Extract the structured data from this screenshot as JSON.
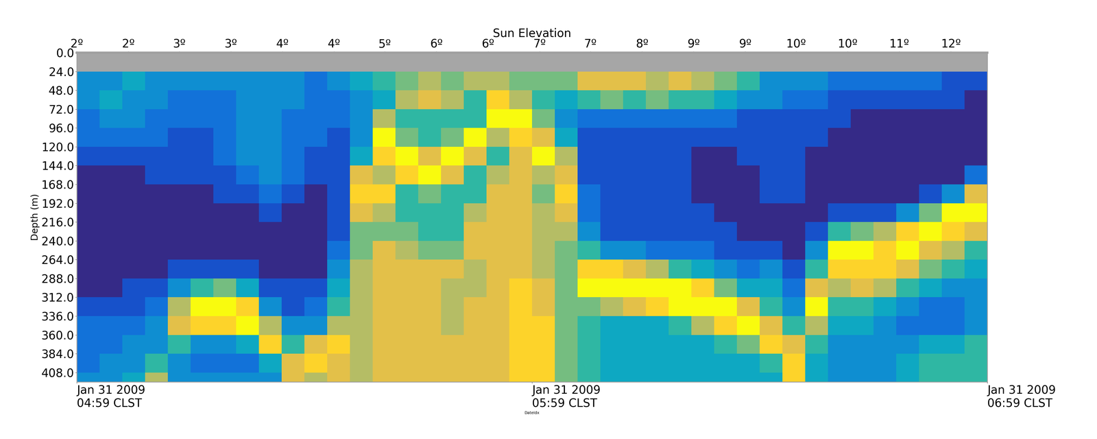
{
  "chart_data": {
    "type": "heatmap",
    "x2label": "Sun Elevation",
    "xlabel": "DateIdx",
    "ylabel": "Depth (m)",
    "xlim": [
      0,
      120
    ],
    "ylim": [
      420,
      0
    ],
    "xticks": [
      {
        "value": 0,
        "label": "Jan 31 2009\n04:59 CLST"
      },
      {
        "value": 60,
        "label": "Jan 31 2009\n05:59 CLST"
      },
      {
        "value": 120,
        "label": "Jan 31 2009\n06:59 CLST"
      }
    ],
    "x2ticks": [
      {
        "value": 0,
        "label": "2º"
      },
      {
        "value": 6.8,
        "label": "2º"
      },
      {
        "value": 13.5,
        "label": "3º"
      },
      {
        "value": 20.3,
        "label": "3º"
      },
      {
        "value": 27.1,
        "label": "4º"
      },
      {
        "value": 33.9,
        "label": "4º"
      },
      {
        "value": 40.6,
        "label": "5º"
      },
      {
        "value": 47.4,
        "label": "6º"
      },
      {
        "value": 54.2,
        "label": "6º"
      },
      {
        "value": 61.0,
        "label": "7º"
      },
      {
        "value": 67.7,
        "label": "7º"
      },
      {
        "value": 74.5,
        "label": "8º"
      },
      {
        "value": 81.3,
        "label": "9º"
      },
      {
        "value": 88.1,
        "label": "9º"
      },
      {
        "value": 94.8,
        "label": "10º"
      },
      {
        "value": 101.6,
        "label": "10º"
      },
      {
        "value": 108.4,
        "label": "11º"
      },
      {
        "value": 115.2,
        "label": "12º"
      }
    ],
    "yticks": [
      {
        "value": 0,
        "label": "0.0"
      },
      {
        "value": 24,
        "label": "24.0"
      },
      {
        "value": 48,
        "label": "48.0"
      },
      {
        "value": 72,
        "label": "72.0"
      },
      {
        "value": 96,
        "label": "96.0"
      },
      {
        "value": 120,
        "label": "120.0"
      },
      {
        "value": 144,
        "label": "144.0"
      },
      {
        "value": 168,
        "label": "168.0"
      },
      {
        "value": 192,
        "label": "192.0"
      },
      {
        "value": 216,
        "label": "216.0"
      },
      {
        "value": 240,
        "label": "240.0"
      },
      {
        "value": 264,
        "label": "264.0"
      },
      {
        "value": 288,
        "label": "288.0"
      },
      {
        "value": 312,
        "label": "312.0"
      },
      {
        "value": 336,
        "label": "336.0"
      },
      {
        "value": 360,
        "label": "360.0"
      },
      {
        "value": 384,
        "label": "384.0"
      },
      {
        "value": 408,
        "label": "408.0"
      }
    ],
    "color_range": [
      0,
      10
    ],
    "x_edges": [
      0,
      3,
      6,
      9,
      12,
      15,
      18,
      21,
      24,
      27,
      30,
      33,
      36,
      39,
      42,
      45,
      48,
      51,
      54,
      57,
      60,
      63,
      66,
      69,
      72,
      75,
      78,
      81,
      84,
      87,
      90,
      93,
      96,
      99,
      102,
      105,
      108,
      111,
      114,
      117,
      120
    ],
    "y_edges": [
      24,
      48,
      72,
      96,
      120,
      144,
      168,
      192,
      216,
      240,
      264,
      288,
      312,
      336,
      360,
      384,
      408,
      420
    ],
    "cells": [
      [
        3,
        3,
        2,
        2,
        1,
        0,
        0,
        0,
        0,
        0,
        0,
        0,
        1,
        2,
        2,
        2,
        3
      ],
      [
        3,
        4,
        3,
        2,
        1,
        0,
        0,
        0,
        0,
        0,
        0,
        0,
        1,
        2,
        2,
        3,
        3
      ],
      [
        4,
        3,
        3,
        2,
        1,
        0,
        0,
        0,
        0,
        0,
        0,
        1,
        1,
        2,
        3,
        3,
        4
      ],
      [
        3,
        3,
        2,
        2,
        1,
        1,
        0,
        0,
        0,
        0,
        0,
        1,
        2,
        3,
        3,
        5,
        7
      ],
      [
        3,
        2,
        2,
        1,
        1,
        1,
        0,
        0,
        0,
        0,
        1,
        3,
        7,
        8,
        5,
        3,
        3
      ],
      [
        3,
        2,
        2,
        1,
        1,
        1,
        0,
        0,
        0,
        0,
        1,
        5,
        10,
        9,
        3,
        2,
        3
      ],
      [
        3,
        2,
        2,
        2,
        2,
        1,
        1,
        0,
        0,
        0,
        1,
        6,
        10,
        9,
        3,
        2,
        3
      ],
      [
        3,
        3,
        3,
        3,
        3,
        2,
        1,
        0,
        0,
        0,
        1,
        4,
        9,
        10,
        4,
        2,
        3
      ],
      [
        3,
        3,
        3,
        3,
        3,
        3,
        2,
        1,
        0,
        0,
        0,
        1,
        3,
        7,
        9,
        4,
        3
      ],
      [
        3,
        3,
        2,
        2,
        2,
        2,
        1,
        0,
        0,
        0,
        0,
        1,
        1,
        3,
        5,
        8,
        8
      ],
      [
        2,
        2,
        2,
        2,
        1,
        1,
        0,
        0,
        0,
        0,
        0,
        1,
        2,
        3,
        8,
        9,
        7
      ],
      [
        3,
        2,
        2,
        1,
        1,
        1,
        1,
        1,
        1,
        2,
        3,
        4,
        5,
        7,
        9,
        8,
        8
      ],
      [
        4,
        3,
        3,
        3,
        4,
        8,
        9,
        8,
        6,
        6,
        7,
        7,
        7,
        7,
        7,
        7,
        7
      ],
      [
        5,
        4,
        7,
        10,
        9,
        7,
        9,
        7,
        6,
        8,
        8,
        8,
        8,
        8,
        8,
        8,
        8
      ],
      [
        6,
        7,
        5,
        6,
        10,
        9,
        5,
        5,
        6,
        7,
        8,
        8,
        8,
        8,
        8,
        8,
        8
      ],
      [
        7,
        8,
        5,
        5,
        8,
        10,
        6,
        5,
        5,
        6,
        8,
        8,
        8,
        8,
        8,
        8,
        8
      ],
      [
        6,
        7,
        5,
        6,
        10,
        8,
        5,
        5,
        5,
        6,
        8,
        7,
        7,
        7,
        8,
        8,
        8
      ],
      [
        7,
        5,
        5,
        10,
        8,
        5,
        5,
        7,
        8,
        8,
        7,
        7,
        8,
        8,
        8,
        8,
        8
      ],
      [
        7,
        9,
        10,
        7,
        5,
        7,
        8,
        8,
        8,
        8,
        8,
        8,
        8,
        8,
        8,
        8,
        8
      ],
      [
        6,
        7,
        10,
        9,
        8,
        8,
        8,
        8,
        8,
        8,
        8,
        9,
        9,
        9,
        9,
        9,
        9
      ],
      [
        6,
        5,
        6,
        8,
        10,
        7,
        6,
        7,
        7,
        7,
        7,
        8,
        8,
        9,
        9,
        9,
        9
      ],
      [
        6,
        4,
        3,
        4,
        7,
        8,
        9,
        8,
        7,
        6,
        6,
        6,
        6,
        6,
        6,
        6,
        6
      ],
      [
        8,
        5,
        2,
        1,
        1,
        1,
        2,
        2,
        3,
        5,
        9,
        10,
        6,
        5,
        5,
        5,
        5
      ],
      [
        8,
        6,
        2,
        1,
        1,
        1,
        1,
        1,
        1,
        3,
        9,
        10,
        7,
        4,
        4,
        4,
        4
      ],
      [
        8,
        5,
        2,
        1,
        1,
        1,
        1,
        1,
        1,
        3,
        8,
        10,
        8,
        4,
        4,
        4,
        4
      ],
      [
        7,
        6,
        2,
        1,
        1,
        1,
        1,
        1,
        1,
        2,
        7,
        10,
        9,
        4,
        4,
        4,
        4
      ],
      [
        8,
        5,
        2,
        1,
        1,
        1,
        1,
        1,
        1,
        2,
        5,
        10,
        10,
        5,
        4,
        4,
        4
      ],
      [
        7,
        5,
        2,
        1,
        0,
        0,
        0,
        1,
        1,
        2,
        4,
        9,
        10,
        7,
        4,
        4,
        4
      ],
      [
        6,
        4,
        2,
        1,
        0,
        0,
        0,
        0,
        1,
        1,
        3,
        6,
        10,
        9,
        5,
        4,
        4
      ],
      [
        5,
        3,
        1,
        1,
        1,
        0,
        0,
        0,
        0,
        1,
        2,
        4,
        8,
        10,
        6,
        4,
        4
      ],
      [
        3,
        3,
        1,
        1,
        1,
        1,
        1,
        0,
        0,
        1,
        3,
        4,
        5,
        8,
        9,
        5,
        4
      ],
      [
        3,
        2,
        1,
        1,
        1,
        1,
        1,
        0,
        0,
        0,
        1,
        2,
        3,
        5,
        8,
        9,
        9
      ],
      [
        3,
        2,
        1,
        1,
        0,
        0,
        0,
        0,
        1,
        3,
        5,
        8,
        10,
        7,
        5,
        4,
        4
      ],
      [
        2,
        1,
        1,
        0,
        0,
        0,
        0,
        1,
        5,
        10,
        9,
        7,
        5,
        4,
        3,
        3,
        3
      ],
      [
        2,
        1,
        0,
        0,
        0,
        0,
        0,
        1,
        6,
        10,
        9,
        8,
        5,
        4,
        3,
        3,
        3
      ],
      [
        2,
        1,
        0,
        0,
        0,
        0,
        0,
        1,
        7,
        9,
        9,
        7,
        4,
        3,
        3,
        3,
        3
      ],
      [
        2,
        1,
        0,
        0,
        0,
        0,
        0,
        3,
        9,
        10,
        8,
        5,
        3,
        2,
        3,
        4,
        4
      ],
      [
        2,
        1,
        0,
        0,
        0,
        0,
        1,
        6,
        10,
        8,
        6,
        4,
        2,
        2,
        4,
        5,
        5
      ],
      [
        1,
        1,
        0,
        0,
        0,
        0,
        3,
        10,
        9,
        7,
        5,
        3,
        2,
        2,
        4,
        5,
        5
      ],
      [
        1,
        0,
        0,
        0,
        0,
        2,
        8,
        10,
        8,
        5,
        4,
        3,
        3,
        3,
        5,
        5,
        5
      ]
    ]
  }
}
